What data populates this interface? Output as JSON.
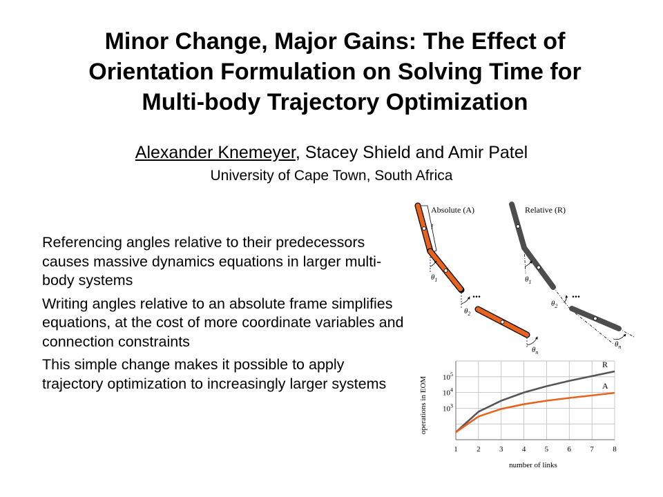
{
  "slide": {
    "title_lines": [
      "Minor Change, Major Gains: The Effect of",
      "Orientation Formulation on Solving Time for",
      "Multi-body Trajectory Optimization"
    ],
    "presenter": "Alexander Knemeyer",
    "coauthors": ", Stacey Shield and Amir Patel",
    "affiliation": "University of Cape Town, South Africa",
    "bullets": [
      "Referencing angles relative to their predecessors causes massive dynamics equations in larger multi-body systems",
      "Writing angles relative to an absolute frame simplifies equations, at the cost of more coordinate variables and connection constraints",
      "This simple change makes it possible to apply trajectory optimization to increasingly larger systems"
    ]
  },
  "diagram": {
    "absolute_label": "Absolute (A)",
    "relative_label": "Relative (R)",
    "length_label": "l",
    "theta1": "θ",
    "theta2": "θ",
    "thetan": "θ",
    "sub1": "1",
    "sub2": "2",
    "subn": "n",
    "ellipsis": "...",
    "colors": {
      "absolute": "#e8641e",
      "relative": "#4d4d4d"
    }
  },
  "chart_data": {
    "type": "line",
    "xlabel": "number of links",
    "ylabel": "operations in EOM",
    "x": [
      1,
      2,
      3,
      4,
      5,
      6,
      7,
      8
    ],
    "y_scale": "log",
    "y_tick_labels": [
      "10",
      "10",
      "10"
    ],
    "y_tick_exponents": [
      "3",
      "4",
      "5"
    ],
    "y_tick_values": [
      1000,
      10000,
      100000
    ],
    "ylim": [
      10,
      1000000
    ],
    "grid": true,
    "series": [
      {
        "name": "R",
        "color": "#555555",
        "values": [
          30,
          600,
          3000,
          10000,
          25000,
          55000,
          110000,
          220000
        ]
      },
      {
        "name": "A",
        "color": "#e8641e",
        "values": [
          30,
          300,
          900,
          1800,
          3000,
          4500,
          6500,
          9500
        ]
      }
    ]
  }
}
